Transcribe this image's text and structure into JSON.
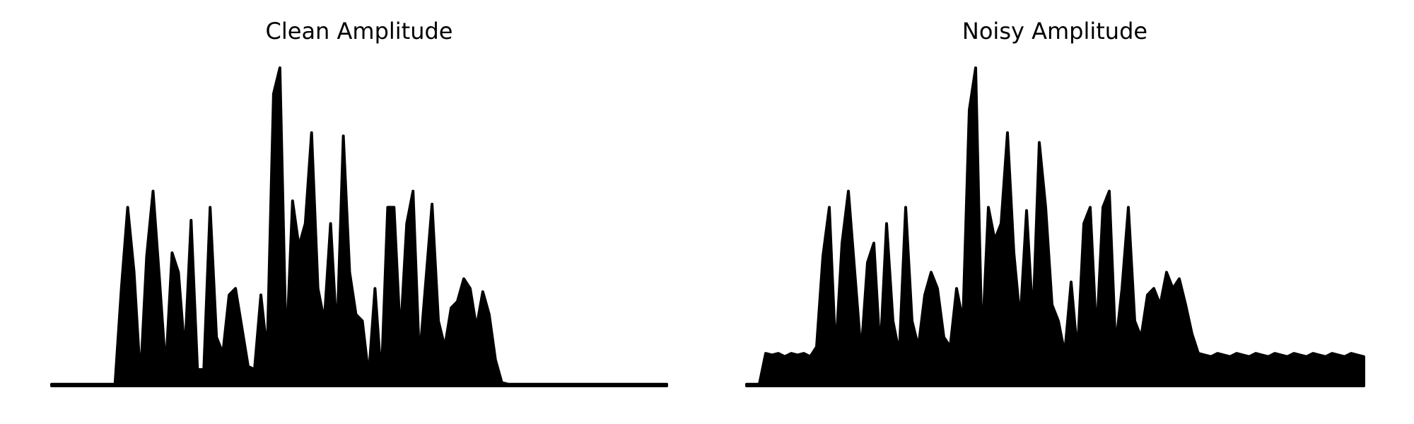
{
  "chart_data": [
    {
      "type": "area",
      "title": "Clean Amplitude",
      "color": "#000000",
      "values": [
        0.005,
        0.005,
        0.005,
        0.005,
        0.005,
        0.005,
        0.005,
        0.005,
        0.005,
        0.005,
        0.005,
        0.3,
        0.55,
        0.35,
        0.02,
        0.4,
        0.6,
        0.33,
        0.05,
        0.41,
        0.35,
        0.1,
        0.51,
        0.05,
        0.05,
        0.55,
        0.15,
        0.1,
        0.28,
        0.3,
        0.18,
        0.06,
        0.05,
        0.28,
        0.1,
        0.9,
        0.98,
        0.1,
        0.57,
        0.43,
        0.5,
        0.78,
        0.3,
        0.2,
        0.5,
        0.15,
        0.77,
        0.35,
        0.22,
        0.2,
        0.03,
        0.3,
        0.02,
        0.55,
        0.55,
        0.15,
        0.5,
        0.6,
        0.08,
        0.32,
        0.56,
        0.2,
        0.12,
        0.24,
        0.26,
        0.33,
        0.3,
        0.18,
        0.29,
        0.22,
        0.08,
        0.01,
        0.005,
        0.005,
        0.005,
        0.005,
        0.005,
        0.005,
        0.005,
        0.005,
        0.005,
        0.005,
        0.005,
        0.005,
        0.005,
        0.005,
        0.005,
        0.005,
        0.005,
        0.005,
        0.005,
        0.005,
        0.005,
        0.005,
        0.005,
        0.005,
        0.005,
        0.005
      ]
    },
    {
      "type": "area",
      "title": "Noisy Amplitude",
      "color": "#000000",
      "values": [
        0.005,
        0.005,
        0.005,
        0.1,
        0.095,
        0.1,
        0.09,
        0.1,
        0.095,
        0.1,
        0.09,
        0.12,
        0.4,
        0.55,
        0.1,
        0.44,
        0.6,
        0.35,
        0.1,
        0.38,
        0.44,
        0.1,
        0.5,
        0.2,
        0.1,
        0.55,
        0.2,
        0.12,
        0.28,
        0.35,
        0.3,
        0.15,
        0.12,
        0.3,
        0.2,
        0.85,
        0.98,
        0.12,
        0.55,
        0.45,
        0.5,
        0.78,
        0.41,
        0.2,
        0.54,
        0.2,
        0.75,
        0.55,
        0.25,
        0.2,
        0.1,
        0.32,
        0.1,
        0.5,
        0.55,
        0.15,
        0.55,
        0.6,
        0.12,
        0.3,
        0.55,
        0.2,
        0.15,
        0.28,
        0.3,
        0.25,
        0.35,
        0.3,
        0.33,
        0.25,
        0.16,
        0.1,
        0.095,
        0.09,
        0.1,
        0.095,
        0.09,
        0.1,
        0.095,
        0.09,
        0.1,
        0.095,
        0.09,
        0.1,
        0.095,
        0.09,
        0.1,
        0.095,
        0.09,
        0.1,
        0.095,
        0.09,
        0.1,
        0.095,
        0.09,
        0.1,
        0.095,
        0.09
      ]
    }
  ]
}
